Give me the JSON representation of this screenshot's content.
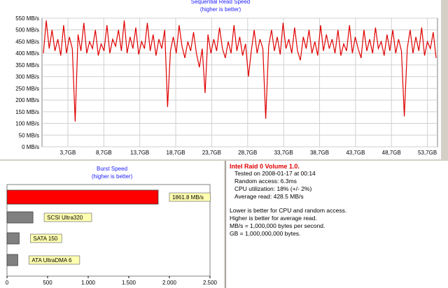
{
  "top_chart": {
    "title": "Sequential Read Speed",
    "subtitle": "(higher is better)"
  },
  "burst": {
    "title": "Burst Speed",
    "subtitle": "(higher is better)"
  },
  "info": {
    "heading": "Intel Raid 0 Volume 1.0.",
    "lines": [
      "Tested on 2008-01-17 at 00:14",
      "Random access: 6.3ms",
      "CPU utilization: 18% (+/- 2%)",
      "Average read: 428.5 MB/s"
    ],
    "notes": [
      "Lower is better for CPU and random access.",
      "Higher is better for average read.",
      "MB/s = 1,000,000 bytes per second.",
      "GB = 1,000,000,000 bytes."
    ]
  },
  "colors": {
    "series": "#e00000",
    "bar_main": "#ff0000",
    "bar_other": "#808080",
    "label_bg": "#ffffb0",
    "title": "#2020ff"
  },
  "chart_data": [
    {
      "type": "line",
      "title": "Sequential Read Speed",
      "subtitle": "(higher is better)",
      "ylim": [
        0,
        550
      ],
      "y_ticks": [
        "0 MB/s",
        "50 MB/s",
        "100 MB/s",
        "150 MB/s",
        "200 MB/s",
        "250 MB/s",
        "300 MB/s",
        "350 MB/s",
        "400 MB/s",
        "450 MB/s",
        "500 MB/s",
        "550 MB/s"
      ],
      "x_ticks": [
        "3,7GB",
        "8,7GB",
        "13,7GB",
        "18,7GB",
        "23,7GB",
        "28,7GB",
        "33,7GB",
        "38,7GB",
        "43,7GB",
        "48,7GB",
        "53,7GB"
      ],
      "series": [
        {
          "values": [
            400,
            540,
            420,
            500,
            410,
            460,
            390,
            520,
            400,
            470,
            420,
            108,
            480,
            410,
            530,
            400,
            450,
            420,
            500,
            390,
            440,
            410,
            520,
            400,
            460,
            430,
            500,
            410,
            540,
            400,
            470,
            420,
            510,
            395,
            450,
            420,
            530,
            410,
            480,
            390,
            460,
            420,
            500,
            170,
            410,
            470,
            400,
            520,
            430,
            380,
            450,
            410,
            490,
            400,
            340,
            420,
            230,
            480,
            400,
            460,
            410,
            510,
            420,
            380,
            450,
            400,
            520,
            410,
            470,
            390,
            440,
            300,
            410,
            500,
            400,
            460,
            420,
            120,
            430,
            500,
            410,
            470,
            395,
            530,
            420,
            460,
            400,
            510,
            410,
            370,
            470,
            420,
            500,
            400,
            450,
            390,
            520,
            410,
            480,
            420,
            460,
            400,
            500,
            390,
            440,
            410,
            520,
            400,
            470,
            420,
            380,
            500,
            410,
            460,
            400,
            510,
            420,
            450,
            390,
            480,
            410,
            500,
            400,
            460,
            410,
            130,
            420,
            500,
            400,
            470,
            410,
            510,
            390,
            450,
            420,
            490,
            380
          ]
        }
      ]
    },
    {
      "type": "bar",
      "title": "Burst Speed",
      "subtitle": "(higher is better)",
      "orientation": "horizontal",
      "categories": [
        "Intel Raid 0 Volume 1.0.",
        "SCSI Ultra320",
        "SATA 150",
        "ATA UltraDMA 6"
      ],
      "values": [
        1861.8,
        320,
        150,
        133
      ],
      "bar_labels": [
        "1861.8 MB/s",
        "SCSI Ultra320",
        "SATA 150",
        "ATA UltraDMA 6"
      ],
      "x_ticks": [
        "0",
        "500",
        "1.000",
        "1.500",
        "2.000",
        "2.500"
      ],
      "xlim": [
        0,
        2500
      ]
    }
  ]
}
